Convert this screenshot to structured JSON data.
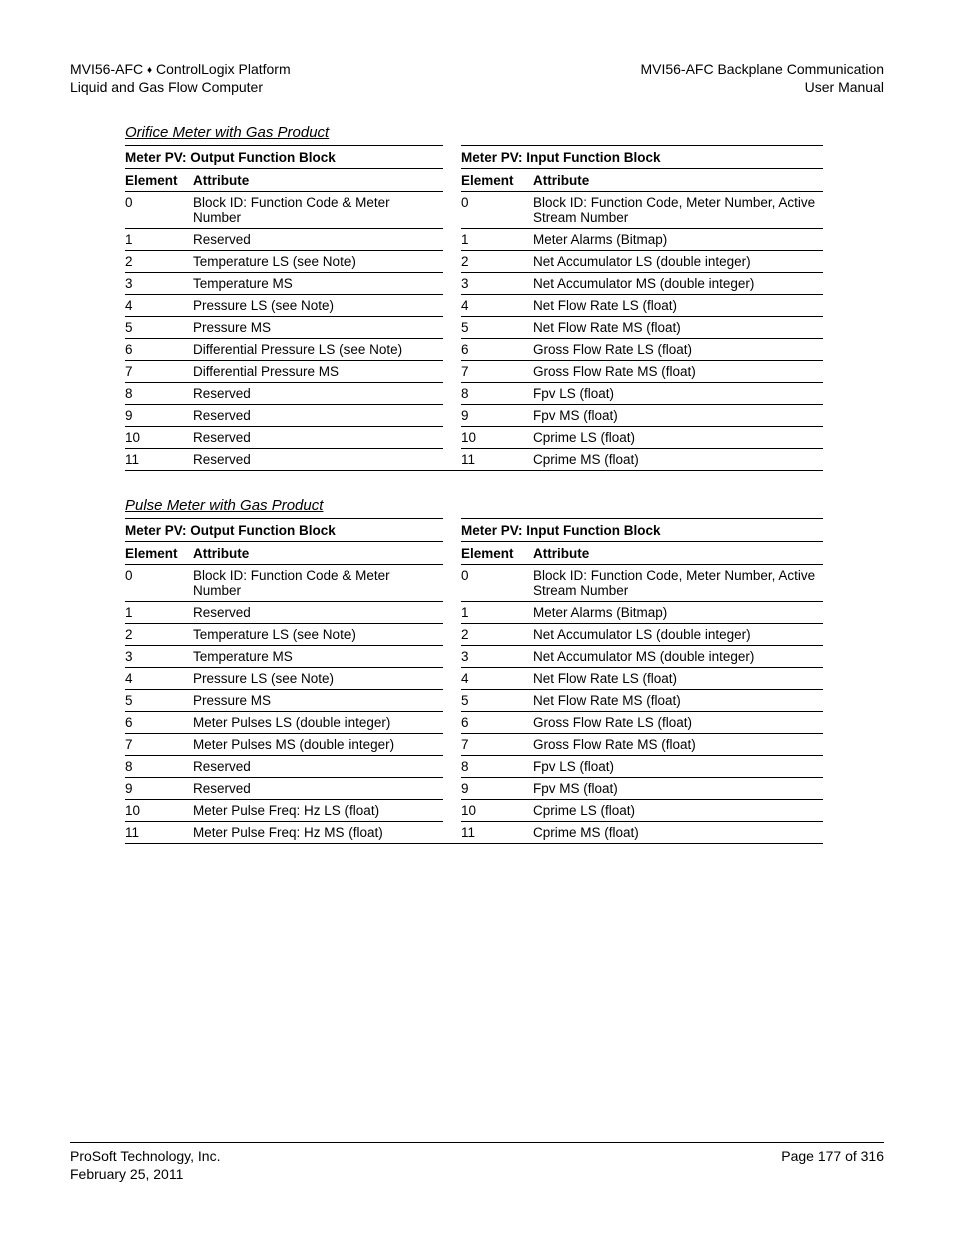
{
  "header": {
    "left1_a": "MVI56-AFC ",
    "left1_b": " ControlLogix Platform",
    "left2": "Liquid and Gas Flow Computer",
    "right1": "MVI56-AFC Backplane Communication",
    "right2": "User Manual"
  },
  "section1": {
    "title": "Orifice Meter with Gas Product",
    "outHdr": "Meter PV: Output Function Block",
    "inHdr": "Meter PV: Input Function Block",
    "colElem": "Element",
    "colAttr": "Attribute",
    "rows": [
      {
        "oe": "0",
        "oa": "Block ID: Function Code & Meter Number",
        "ie": "0",
        "ia": "Block ID: Function Code, Meter Number, Active Stream Number"
      },
      {
        "oe": "1",
        "oa": "Reserved",
        "ie": "1",
        "ia": "Meter Alarms (Bitmap)"
      },
      {
        "oe": "2",
        "oa": "Temperature LS (see Note)",
        "ie": "2",
        "ia": "Net Accumulator LS (double integer)"
      },
      {
        "oe": "3",
        "oa": "Temperature MS",
        "ie": "3",
        "ia": "Net Accumulator MS (double integer)"
      },
      {
        "oe": "4",
        "oa": "Pressure LS (see Note)",
        "ie": "4",
        "ia": "Net Flow Rate LS (float)"
      },
      {
        "oe": "5",
        "oa": "Pressure MS",
        "ie": "5",
        "ia": "Net Flow Rate MS (float)"
      },
      {
        "oe": "6",
        "oa": "Differential Pressure LS (see Note)",
        "ie": "6",
        "ia": "Gross Flow Rate LS (float)"
      },
      {
        "oe": "7",
        "oa": "Differential Pressure MS",
        "ie": "7",
        "ia": "Gross Flow Rate MS (float)"
      },
      {
        "oe": "8",
        "oa": "Reserved",
        "ie": "8",
        "ia": "Fpv LS (float)"
      },
      {
        "oe": "9",
        "oa": "Reserved",
        "ie": "9",
        "ia": "Fpv MS (float)"
      },
      {
        "oe": "10",
        "oa": "Reserved",
        "ie": "10",
        "ia": "Cprime LS (float)"
      },
      {
        "oe": "11",
        "oa": "Reserved",
        "ie": "11",
        "ia": "Cprime MS (float)"
      }
    ]
  },
  "section2": {
    "title": "Pulse Meter with Gas Product",
    "outHdr": "Meter PV: Output Function Block",
    "inHdr": "Meter PV: Input Function Block",
    "colElem": "Element",
    "colAttr": "Attribute",
    "rows": [
      {
        "oe": "0",
        "oa": "Block ID: Function Code & Meter Number",
        "ie": "0",
        "ia": "Block ID: Function Code, Meter Number, Active Stream Number"
      },
      {
        "oe": "1",
        "oa": "Reserved",
        "ie": "1",
        "ia": "Meter Alarms (Bitmap)"
      },
      {
        "oe": "2",
        "oa": "Temperature LS (see Note)",
        "ie": "2",
        "ia": "Net Accumulator LS (double integer)"
      },
      {
        "oe": "3",
        "oa": "Temperature MS",
        "ie": "3",
        "ia": "Net Accumulator MS (double integer)"
      },
      {
        "oe": "4",
        "oa": "Pressure LS (see Note)",
        "ie": "4",
        "ia": "Net Flow Rate LS (float)"
      },
      {
        "oe": "5",
        "oa": "Pressure MS",
        "ie": "5",
        "ia": "Net Flow Rate MS (float)"
      },
      {
        "oe": "6",
        "oa": "Meter Pulses LS (double integer)",
        "ie": "6",
        "ia": "Gross Flow Rate LS (float)"
      },
      {
        "oe": "7",
        "oa": "Meter Pulses MS (double integer)",
        "ie": "7",
        "ia": "Gross Flow Rate MS (float)"
      },
      {
        "oe": "8",
        "oa": "Reserved",
        "ie": "8",
        "ia": "Fpv LS (float)"
      },
      {
        "oe": "9",
        "oa": "Reserved",
        "ie": "9",
        "ia": "Fpv MS (float)"
      },
      {
        "oe": "10",
        "oa": "Meter Pulse Freq: Hz LS (float)",
        "ie": "10",
        "ia": "Cprime LS (float)"
      },
      {
        "oe": "11",
        "oa": "Meter Pulse Freq: Hz MS (float)",
        "ie": "11",
        "ia": "Cprime MS (float)"
      }
    ]
  },
  "footer": {
    "left1": "ProSoft Technology, Inc.",
    "left2": "February 25, 2011",
    "right": "Page 177 of 316"
  }
}
